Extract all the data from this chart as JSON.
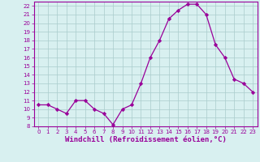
{
  "x": [
    0,
    1,
    2,
    3,
    4,
    5,
    6,
    7,
    8,
    9,
    10,
    11,
    12,
    13,
    14,
    15,
    16,
    17,
    18,
    19,
    20,
    21,
    22,
    23
  ],
  "y": [
    10.5,
    10.5,
    10.0,
    9.5,
    11.0,
    11.0,
    10.0,
    9.5,
    8.2,
    10.0,
    10.5,
    13.0,
    16.0,
    18.0,
    20.5,
    21.5,
    22.2,
    22.2,
    21.0,
    17.5,
    16.0,
    13.5,
    13.0,
    12.0
  ],
  "line_color": "#990099",
  "marker": "D",
  "marker_size": 2.2,
  "bg_color": "#d8f0f0",
  "grid_color": "#aacccc",
  "xlabel": "Windchill (Refroidissement éolien,°C)",
  "ylim_min": 8,
  "ylim_max": 22.5,
  "xlim_min": -0.5,
  "xlim_max": 23.5,
  "yticks": [
    8,
    9,
    10,
    11,
    12,
    13,
    14,
    15,
    16,
    17,
    18,
    19,
    20,
    21,
    22
  ],
  "xticks": [
    0,
    1,
    2,
    3,
    4,
    5,
    6,
    7,
    8,
    9,
    10,
    11,
    12,
    13,
    14,
    15,
    16,
    17,
    18,
    19,
    20,
    21,
    22,
    23
  ],
  "tick_fontsize": 5.0,
  "xlabel_fontsize": 6.5,
  "line_color_spine": "#990099",
  "tick_color": "#990099"
}
